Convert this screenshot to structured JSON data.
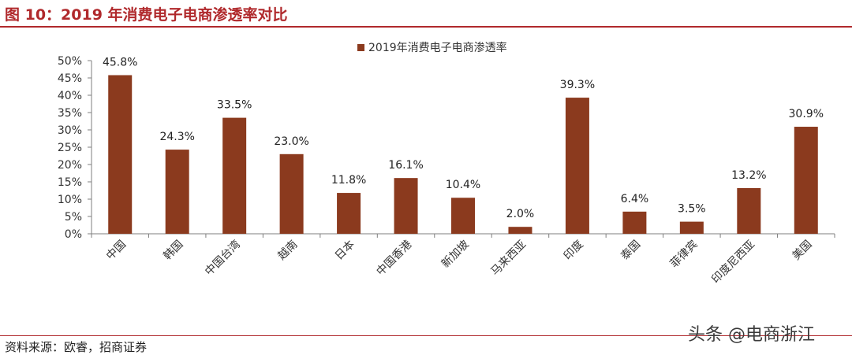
{
  "header": {
    "title": "图 10：2019 年消费电子电商渗透率对比"
  },
  "footer": {
    "source": "资料来源：欧睿，招商证券"
  },
  "watermark": {
    "text": "头条 @电商浙江"
  },
  "colors": {
    "bar": "#8b3a1e",
    "title": "#b0292c",
    "axis": "#7f7f7f"
  },
  "chart_data": {
    "type": "bar",
    "categories": [
      "中国",
      "韩国",
      "中国台湾",
      "越南",
      "日本",
      "中国香港",
      "新加坡",
      "马来西亚",
      "印度",
      "泰国",
      "菲律宾",
      "印度尼西亚",
      "美国"
    ],
    "series": [
      {
        "name": "2019年消费电子电商渗透率",
        "values": [
          45.8,
          24.3,
          33.5,
          23.0,
          11.8,
          16.1,
          10.4,
          2.0,
          39.3,
          6.4,
          3.5,
          13.2,
          30.9
        ],
        "data_labels": [
          "45.8%",
          "24.3%",
          "33.5%",
          "23.0%",
          "11.8%",
          "16.1%",
          "10.4%",
          "2.0%",
          "39.3%",
          "6.4%",
          "3.5%",
          "13.2%",
          "30.9%"
        ]
      }
    ],
    "ylim": [
      0,
      50
    ],
    "yticks": [
      0,
      5,
      10,
      15,
      20,
      25,
      30,
      35,
      40,
      45,
      50
    ],
    "ytick_labels": [
      "0%",
      "5%",
      "10%",
      "15%",
      "20%",
      "25%",
      "30%",
      "35%",
      "40%",
      "45%",
      "50%"
    ],
    "grid": false,
    "legend_position": "top-center"
  }
}
